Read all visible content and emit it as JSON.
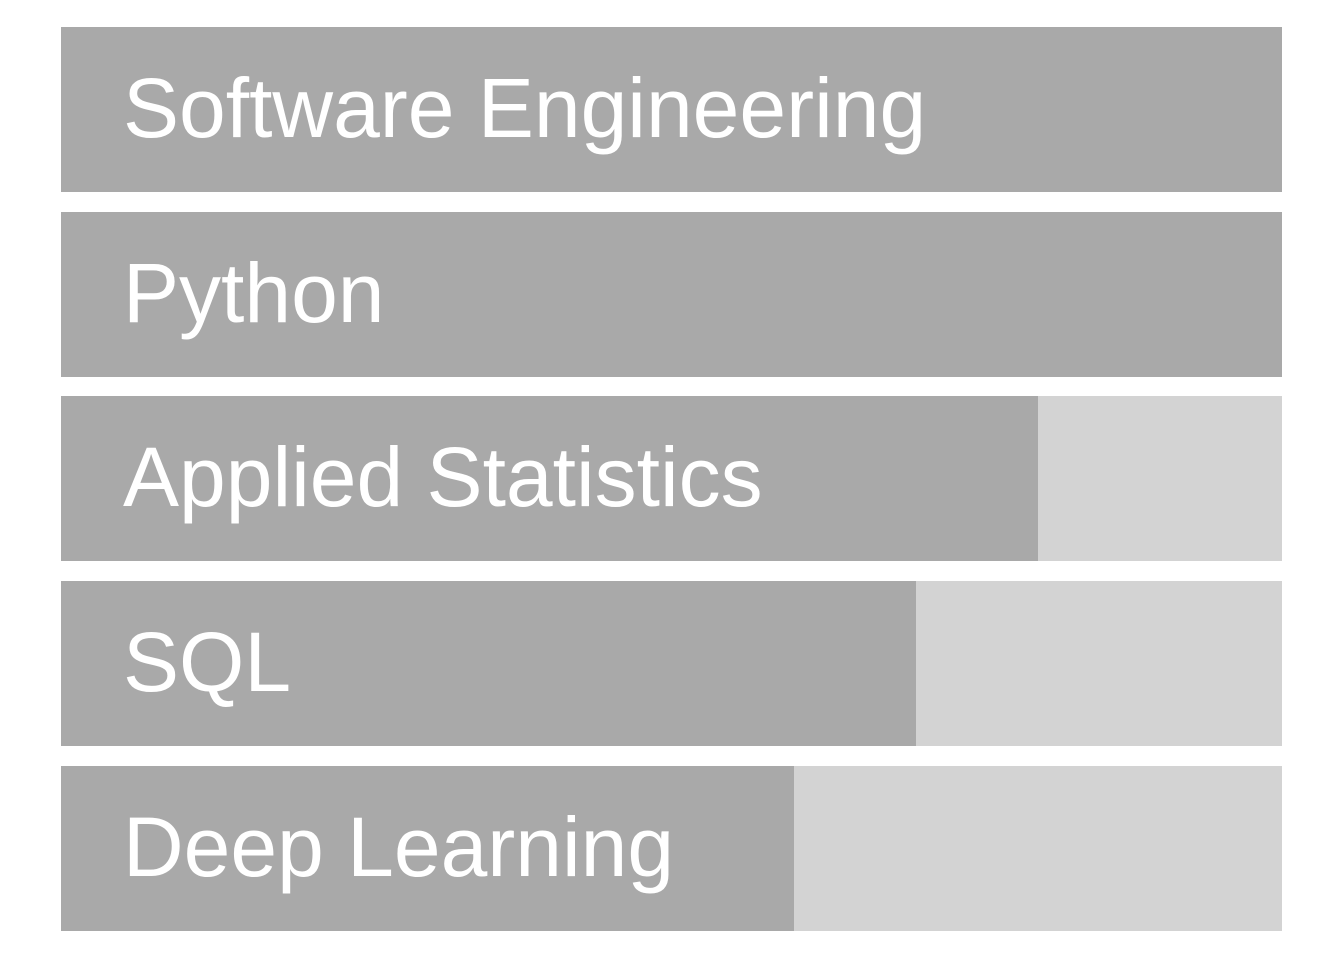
{
  "chart_data": {
    "type": "bar",
    "orientation": "horizontal",
    "title": "",
    "xlabel": "",
    "ylabel": "",
    "categories": [
      "Software Engineering",
      "Python",
      "Applied Statistics",
      "SQL",
      "Deep Learning"
    ],
    "values": [
      100,
      100,
      80,
      70,
      60
    ],
    "xlim": [
      0,
      100
    ],
    "grid": false,
    "legend": "none",
    "colors": {
      "fill": "#a9a9a9",
      "track": "#d3d3d3",
      "label": "#ffffff",
      "background": "#ffffff"
    }
  }
}
